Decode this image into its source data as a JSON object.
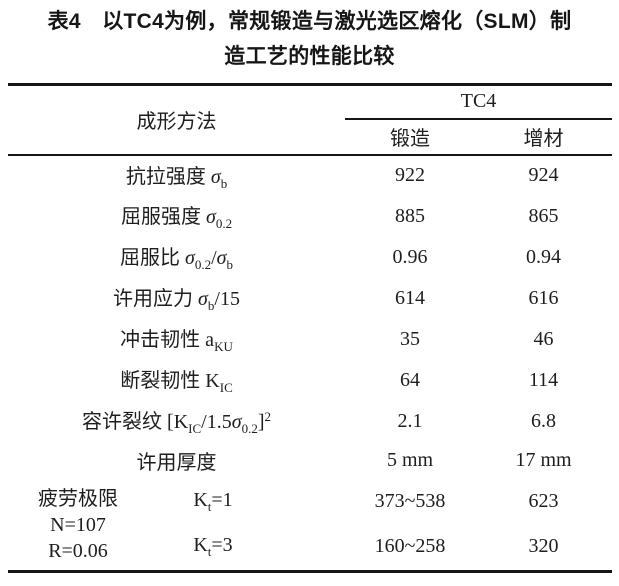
{
  "title": {
    "line1": "表4　以TC4为例，常规锻造与激光选区熔化（SLM）制",
    "line2": "造工艺的性能比较"
  },
  "table": {
    "header": {
      "method_label": "成形方法",
      "group_label": "TC4",
      "col_forging": "锻造",
      "col_additive": "增材"
    },
    "rows": [
      {
        "label": [
          {
            "t": "抗拉强度 "
          },
          {
            "t": "σ",
            "i": true
          },
          {
            "t": "b",
            "sub": true
          }
        ],
        "forge": "922",
        "additive": "924"
      },
      {
        "label": [
          {
            "t": "屈服强度 "
          },
          {
            "t": "σ",
            "i": true
          },
          {
            "t": "0.2",
            "sub": true
          }
        ],
        "forge": "885",
        "additive": "865"
      },
      {
        "label": [
          {
            "t": "屈服比 "
          },
          {
            "t": "σ",
            "i": true
          },
          {
            "t": "0.2",
            "sub": true
          },
          {
            "t": "/"
          },
          {
            "t": "σ",
            "i": true
          },
          {
            "t": "b",
            "sub": true
          }
        ],
        "forge": "0.96",
        "additive": "0.94"
      },
      {
        "label": [
          {
            "t": "许用应力 "
          },
          {
            "t": "σ",
            "i": true
          },
          {
            "t": "b",
            "sub": true
          },
          {
            "t": "/15"
          }
        ],
        "forge": "614",
        "additive": "616"
      },
      {
        "label": [
          {
            "t": "冲击韧性 a"
          },
          {
            "t": "KU",
            "sub": true
          }
        ],
        "forge": "35",
        "additive": "46"
      },
      {
        "label": [
          {
            "t": "断裂韧性 K"
          },
          {
            "t": "IC",
            "sub": true
          }
        ],
        "forge": "64",
        "additive": "114"
      },
      {
        "label": [
          {
            "t": "容许裂纹 [K"
          },
          {
            "t": "IC",
            "sub": true
          },
          {
            "t": "/1.5"
          },
          {
            "t": "σ",
            "i": true
          },
          {
            "t": "0.2",
            "sub": true
          },
          {
            "t": "]"
          },
          {
            "t": "2",
            "sup": true
          }
        ],
        "forge": "2.1",
        "additive": "6.8"
      },
      {
        "label": [
          {
            "t": "许用厚度"
          }
        ],
        "forge": "5 mm",
        "additive": "17 mm"
      }
    ],
    "fatigue": {
      "lines": [
        "疲劳极限",
        "N=107",
        "R=0.06"
      ],
      "sub_rows": [
        {
          "label": [
            {
              "t": "K"
            },
            {
              "t": "t",
              "sub": true
            },
            {
              "t": "=1"
            }
          ],
          "forge": "373~538",
          "additive": "623"
        },
        {
          "label": [
            {
              "t": "K"
            },
            {
              "t": "t",
              "sub": true
            },
            {
              "t": "=3"
            }
          ],
          "forge": "160~258",
          "additive": "320"
        }
      ]
    }
  }
}
